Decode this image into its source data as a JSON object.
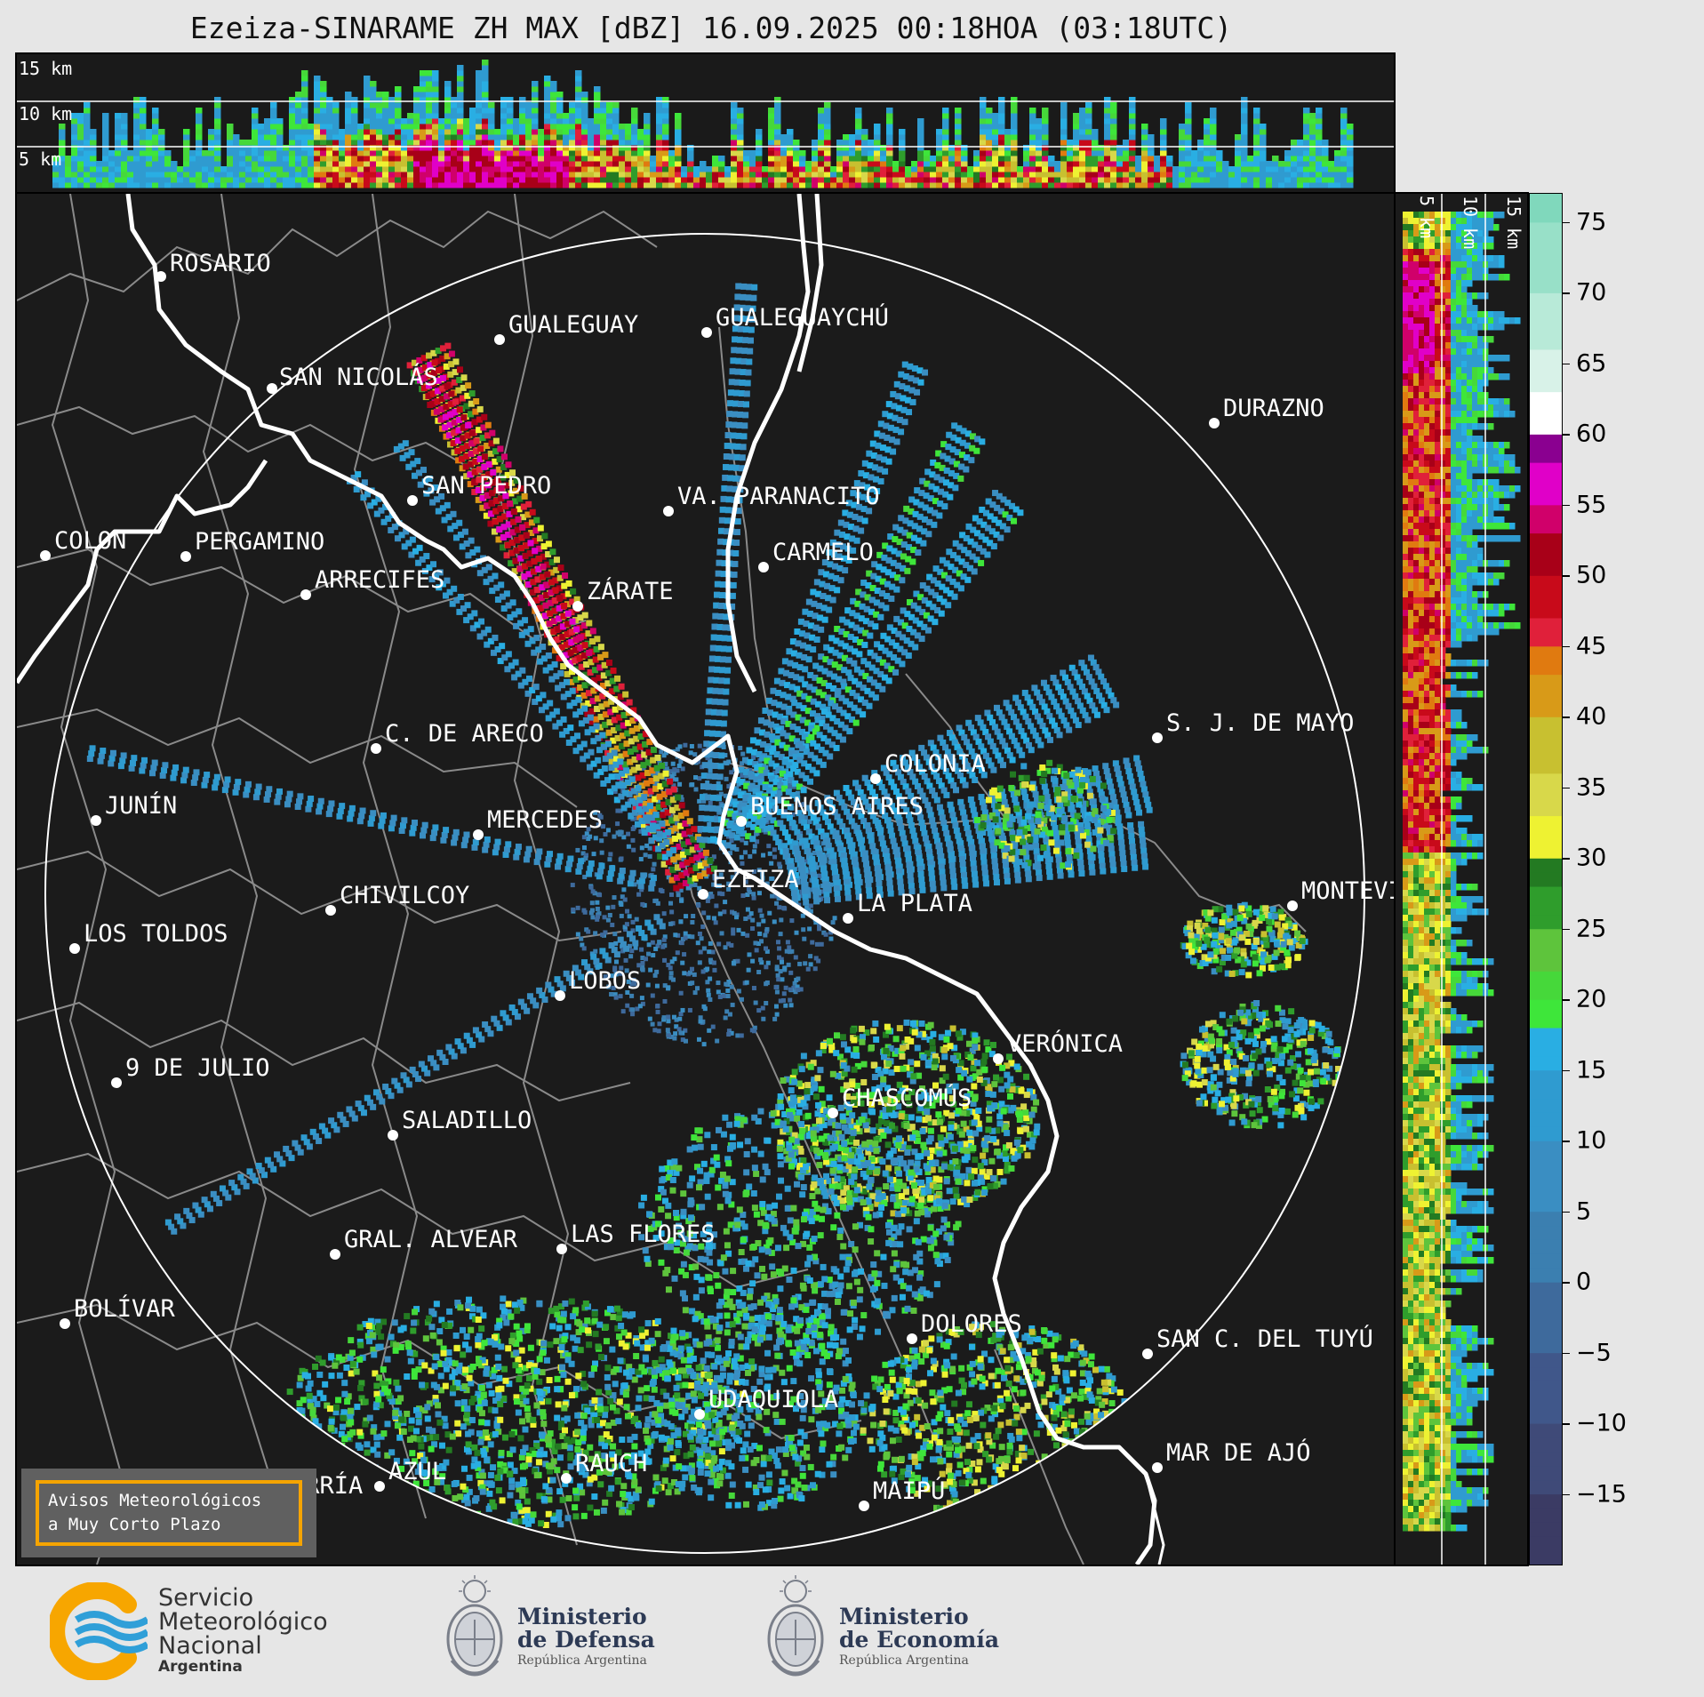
{
  "title": "Ezeiza-SINARAME ZH MAX [dBZ] 16.09.2025 00:18HOA (03:18UTC)",
  "top_section": {
    "height_labels": [
      "15 km",
      "10 km",
      "5 km"
    ]
  },
  "right_section": {
    "height_labels": [
      "5 km",
      "10 km",
      "15 km"
    ]
  },
  "colorbar": {
    "unit": "dBZ",
    "ticks": [
      "75",
      "70",
      "65",
      "60",
      "55",
      "50",
      "45",
      "40",
      "35",
      "30",
      "25",
      "20",
      "15",
      "10",
      "5",
      "0",
      "−5",
      "−10",
      "−15"
    ],
    "tick_values": [
      75,
      70,
      65,
      60,
      55,
      50,
      45,
      40,
      35,
      30,
      25,
      20,
      15,
      10,
      5,
      0,
      -5,
      -10,
      -15
    ],
    "range": [
      -20,
      77
    ]
  },
  "cities": [
    {
      "name": "ROSARIO"
    },
    {
      "name": "GUALEGUAYCHÚ"
    },
    {
      "name": "GUALEGUAY"
    },
    {
      "name": "SAN NICOLÁS"
    },
    {
      "name": "DURAZNO"
    },
    {
      "name": "SAN PEDRO"
    },
    {
      "name": "VA. PARANACITO"
    },
    {
      "name": "COLON"
    },
    {
      "name": "PERGAMINO"
    },
    {
      "name": "CARMELO"
    },
    {
      "name": "ARRECIFES"
    },
    {
      "name": "ZÁRATE"
    },
    {
      "name": "S. J. DE MAYO"
    },
    {
      "name": "C. DE ARECO"
    },
    {
      "name": "COLONIA"
    },
    {
      "name": "JUNÍN"
    },
    {
      "name": "BUENOS AIRES"
    },
    {
      "name": "MERCEDES"
    },
    {
      "name": "MONTEVIDEO"
    },
    {
      "name": "EZEIZA"
    },
    {
      "name": "CHIVILCOY"
    },
    {
      "name": "LA PLATA"
    },
    {
      "name": "LOS TOLDOS"
    },
    {
      "name": "LOBOS"
    },
    {
      "name": "VERÓNICA"
    },
    {
      "name": "9 DE JULIO"
    },
    {
      "name": "CHASCOMÚS"
    },
    {
      "name": "SALADILLO"
    },
    {
      "name": "GRAL. ALVEAR"
    },
    {
      "name": "LAS FLORES"
    },
    {
      "name": "BOLÍVAR"
    },
    {
      "name": "DOLORES"
    },
    {
      "name": "SAN C. DEL TUYÚ"
    },
    {
      "name": "UDAQUIOLA"
    },
    {
      "name": "MAR DE AJÓ"
    },
    {
      "name": "AZUL"
    },
    {
      "name": "RAUCH"
    },
    {
      "name": "OLAVARRÍA"
    },
    {
      "name": "MAIPÚ"
    }
  ],
  "alert_box": {
    "line1": "Avisos Meteorológicos",
    "line2": "a Muy Corto Plazo"
  },
  "footer": {
    "smn": {
      "line1": "Servicio",
      "line2": "Meteorológico",
      "line3": "Nacional",
      "line4": "Argentina"
    },
    "defensa": {
      "line1": "Ministerio",
      "line2": "de Defensa",
      "line3": "República Argentina"
    },
    "economia": {
      "line1": "Ministerio",
      "line2": "de Economía",
      "line3": "República Argentina"
    }
  },
  "colors": {
    "panel_bg": "#1b1b1b",
    "alert_border": "#f5a400",
    "smn_blue": "#2f9fd8",
    "smn_orange": "#f7a600"
  }
}
